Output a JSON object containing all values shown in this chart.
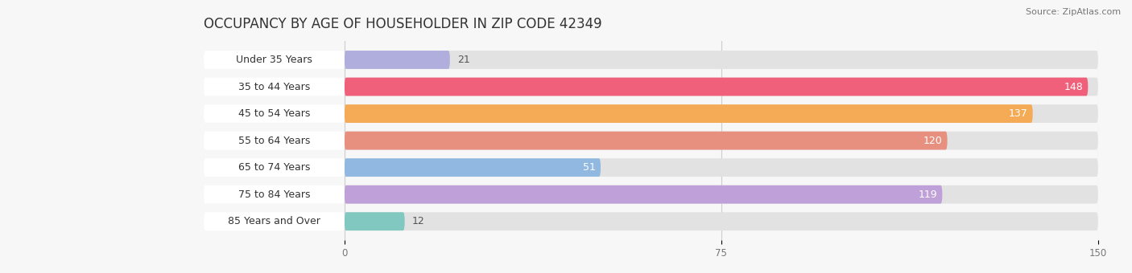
{
  "title": "OCCUPANCY BY AGE OF HOUSEHOLDER IN ZIP CODE 42349",
  "source": "Source: ZipAtlas.com",
  "categories": [
    "Under 35 Years",
    "35 to 44 Years",
    "45 to 54 Years",
    "55 to 64 Years",
    "65 to 74 Years",
    "75 to 84 Years",
    "85 Years and Over"
  ],
  "values": [
    21,
    148,
    137,
    120,
    51,
    119,
    12
  ],
  "bar_colors": [
    "#b0aedd",
    "#f0607a",
    "#f5aa55",
    "#e89080",
    "#90b8e0",
    "#c0a0d8",
    "#80c8c0"
  ],
  "background_color": "#f7f7f7",
  "bar_bg_color": "#e2e2e2",
  "label_bg_color": "#ffffff",
  "xlim_max": 150,
  "xticks": [
    0,
    75,
    150
  ],
  "title_fontsize": 12,
  "label_fontsize": 9,
  "value_fontsize": 9,
  "source_fontsize": 8
}
